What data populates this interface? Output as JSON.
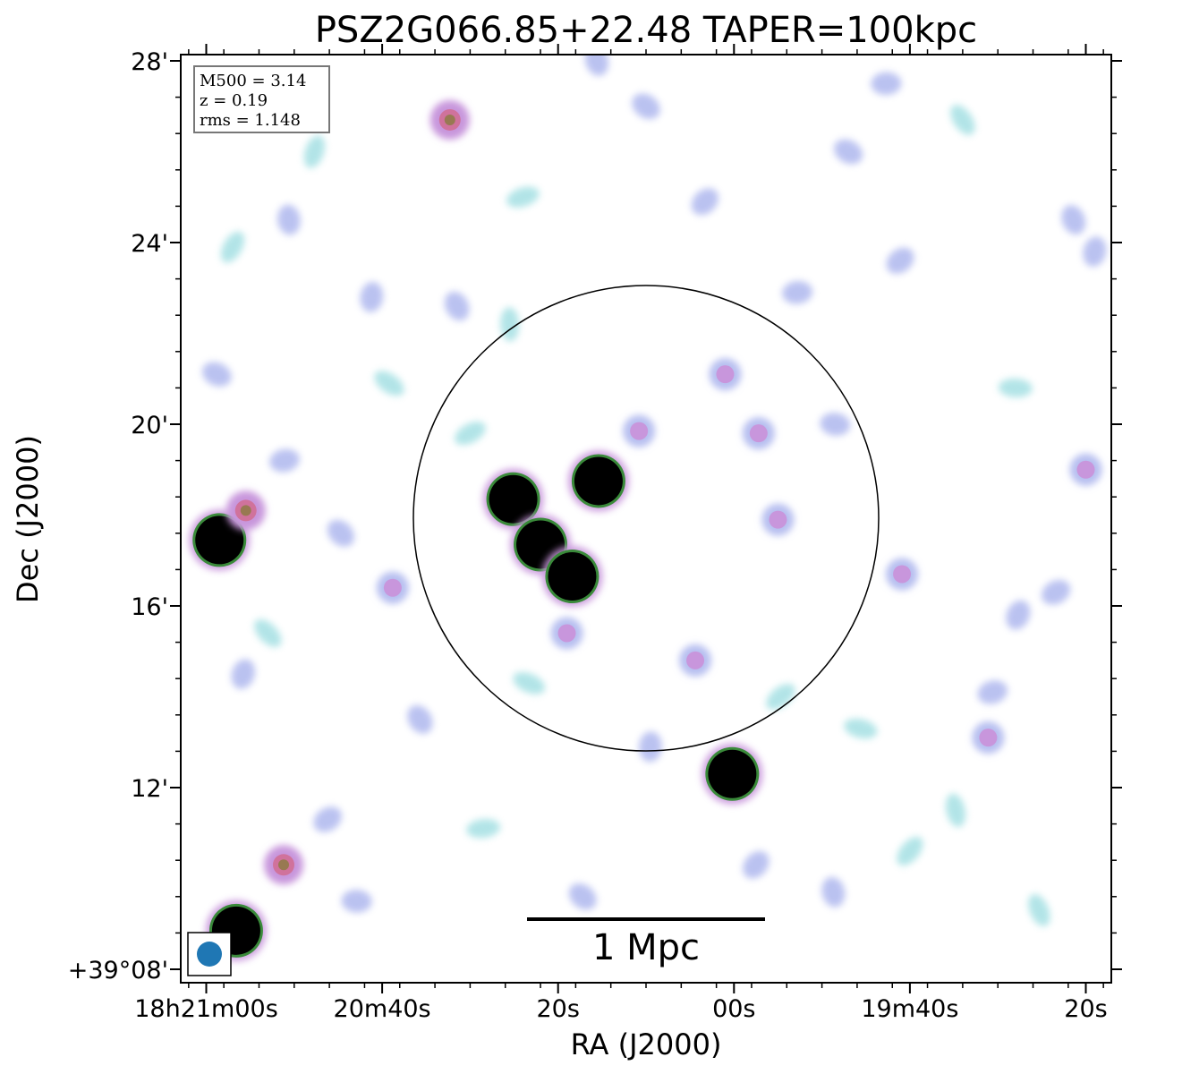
{
  "chart_data": {
    "type": "heatmap",
    "title": "PSZ2G066.85+22.48 TAPER=100kpc",
    "xlabel": "RA (J2000)",
    "ylabel": "Dec (J2000)",
    "x_ticks": [
      {
        "label": "18h21m00s",
        "ra_sec": 0
      },
      {
        "label": "20m40s",
        "ra_sec": 20
      },
      {
        "label": "20s",
        "ra_sec": 40
      },
      {
        "label": "00s",
        "ra_sec": 60
      },
      {
        "label": "19m40s",
        "ra_sec": 80
      },
      {
        "label": "20s",
        "ra_sec": 100
      }
    ],
    "y_ticks": [
      {
        "label": "+39°08'",
        "dec_arcmin": 8
      },
      {
        "label": "12'",
        "dec_arcmin": 12
      },
      {
        "label": "16'",
        "dec_arcmin": 16
      },
      {
        "label": "20'",
        "dec_arcmin": 20
      },
      {
        "label": "24'",
        "dec_arcmin": 24
      },
      {
        "label": "28'",
        "dec_arcmin": 28
      }
    ],
    "xlim_ra_sec_offset": [
      -3,
      102.5
    ],
    "ylim_dec_arcmin": [
      7.9,
      28.2
    ],
    "info_box": [
      "M500 = 3.14",
      "z = 0.19",
      "rms = 1.148"
    ],
    "scale_bar_label": "1 Mpc",
    "circle_label": "",
    "beam": "circular",
    "colors": {
      "faint": "#aee3e6",
      "low": "#b7bff0",
      "mid": "#c896dc",
      "high": "#d0729c",
      "peak_edge": "#3a8a3a",
      "saturated": "#000000",
      "beam": "#1f77b4"
    },
    "sources": [
      {
        "ra_sec": 44.6,
        "dec_arcmin": 18.75,
        "level": "saturated"
      },
      {
        "ra_sec": 34.9,
        "dec_arcmin": 18.35,
        "level": "saturated"
      },
      {
        "ra_sec": 38.0,
        "dec_arcmin": 17.35,
        "level": "saturated"
      },
      {
        "ra_sec": 41.6,
        "dec_arcmin": 16.65,
        "level": "saturated"
      },
      {
        "ra_sec": 59.8,
        "dec_arcmin": 12.3,
        "level": "saturated"
      },
      {
        "ra_sec": 1.5,
        "dec_arcmin": 17.45,
        "level": "saturated"
      },
      {
        "ra_sec": 3.4,
        "dec_arcmin": 8.85,
        "level": "saturated"
      },
      {
        "ra_sec": 4.5,
        "dec_arcmin": 18.1,
        "level": "high"
      },
      {
        "ra_sec": 27.7,
        "dec_arcmin": 26.7,
        "level": "high"
      },
      {
        "ra_sec": 8.8,
        "dec_arcmin": 10.3,
        "level": "high"
      },
      {
        "ra_sec": 62.8,
        "dec_arcmin": 19.8,
        "level": "mid"
      },
      {
        "ra_sec": 49.2,
        "dec_arcmin": 19.85,
        "level": "mid"
      },
      {
        "ra_sec": 59.0,
        "dec_arcmin": 21.1,
        "level": "mid"
      },
      {
        "ra_sec": 65.0,
        "dec_arcmin": 17.9,
        "level": "mid"
      },
      {
        "ra_sec": 41.0,
        "dec_arcmin": 15.4,
        "level": "mid"
      },
      {
        "ra_sec": 55.6,
        "dec_arcmin": 14.8,
        "level": "mid"
      },
      {
        "ra_sec": 21.2,
        "dec_arcmin": 16.4,
        "level": "mid"
      },
      {
        "ra_sec": 79.1,
        "dec_arcmin": 16.7,
        "level": "mid"
      },
      {
        "ra_sec": 88.9,
        "dec_arcmin": 13.1,
        "level": "mid"
      },
      {
        "ra_sec": 89.4,
        "dec_arcmin": 14.1,
        "level": "low"
      },
      {
        "ra_sec": 100.0,
        "dec_arcmin": 19.0,
        "level": "mid"
      },
      {
        "ra_sec": 24.3,
        "dec_arcmin": 13.5,
        "level": "low"
      },
      {
        "ra_sec": 50.5,
        "dec_arcmin": 12.9,
        "level": "low"
      },
      {
        "ra_sec": 62.5,
        "dec_arcmin": 10.3,
        "level": "low"
      },
      {
        "ra_sec": 8.9,
        "dec_arcmin": 19.2,
        "level": "low"
      },
      {
        "ra_sec": 1.2,
        "dec_arcmin": 21.1,
        "level": "low"
      },
      {
        "ra_sec": 28.5,
        "dec_arcmin": 22.6,
        "level": "low"
      },
      {
        "ra_sec": 18.8,
        "dec_arcmin": 22.8,
        "level": "low"
      },
      {
        "ra_sec": 56.7,
        "dec_arcmin": 24.9,
        "level": "low"
      },
      {
        "ra_sec": 67.2,
        "dec_arcmin": 22.9,
        "level": "low"
      },
      {
        "ra_sec": 73.0,
        "dec_arcmin": 26.0,
        "level": "low"
      },
      {
        "ra_sec": 98.6,
        "dec_arcmin": 24.5,
        "level": "low"
      },
      {
        "ra_sec": 101.0,
        "dec_arcmin": 23.8,
        "level": "low"
      },
      {
        "ra_sec": 78.9,
        "dec_arcmin": 23.6,
        "level": "low"
      },
      {
        "ra_sec": 77.3,
        "dec_arcmin": 27.5,
        "level": "low"
      },
      {
        "ra_sec": 50.0,
        "dec_arcmin": 27.0,
        "level": "low"
      },
      {
        "ra_sec": 44.4,
        "dec_arcmin": 28.0,
        "level": "low"
      },
      {
        "ra_sec": 4.2,
        "dec_arcmin": 14.5,
        "level": "low"
      },
      {
        "ra_sec": 13.8,
        "dec_arcmin": 11.3,
        "level": "low"
      },
      {
        "ra_sec": 17.1,
        "dec_arcmin": 9.5,
        "level": "low"
      },
      {
        "ra_sec": 42.8,
        "dec_arcmin": 9.6,
        "level": "low"
      },
      {
        "ra_sec": 71.3,
        "dec_arcmin": 9.7,
        "level": "low"
      },
      {
        "ra_sec": 92.3,
        "dec_arcmin": 15.8,
        "level": "low"
      },
      {
        "ra_sec": 96.6,
        "dec_arcmin": 16.3,
        "level": "low"
      },
      {
        "ra_sec": 71.5,
        "dec_arcmin": 20.0,
        "level": "low"
      },
      {
        "ra_sec": 15.3,
        "dec_arcmin": 17.6,
        "level": "low"
      },
      {
        "ra_sec": 9.4,
        "dec_arcmin": 24.5,
        "level": "low"
      },
      {
        "ra_sec": 30.0,
        "dec_arcmin": 19.8,
        "level": "faint"
      },
      {
        "ra_sec": 36.7,
        "dec_arcmin": 14.3,
        "level": "faint"
      },
      {
        "ra_sec": 85.2,
        "dec_arcmin": 11.5,
        "level": "faint"
      },
      {
        "ra_sec": 80.0,
        "dec_arcmin": 10.6,
        "level": "faint"
      },
      {
        "ra_sec": 92.0,
        "dec_arcmin": 20.8,
        "level": "faint"
      },
      {
        "ra_sec": 86.0,
        "dec_arcmin": 26.7,
        "level": "faint"
      },
      {
        "ra_sec": 12.3,
        "dec_arcmin": 26.0,
        "level": "faint"
      },
      {
        "ra_sec": 36.0,
        "dec_arcmin": 25.0,
        "level": "faint"
      },
      {
        "ra_sec": 20.8,
        "dec_arcmin": 20.9,
        "level": "faint"
      },
      {
        "ra_sec": 34.5,
        "dec_arcmin": 22.2,
        "level": "faint"
      },
      {
        "ra_sec": 65.3,
        "dec_arcmin": 14.0,
        "level": "faint"
      },
      {
        "ra_sec": 74.4,
        "dec_arcmin": 13.3,
        "level": "faint"
      },
      {
        "ra_sec": 94.7,
        "dec_arcmin": 9.3,
        "level": "faint"
      },
      {
        "ra_sec": 3.0,
        "dec_arcmin": 23.9,
        "level": "faint"
      },
      {
        "ra_sec": 31.5,
        "dec_arcmin": 11.1,
        "level": "faint"
      },
      {
        "ra_sec": 7.0,
        "dec_arcmin": 15.4,
        "level": "faint"
      }
    ]
  }
}
